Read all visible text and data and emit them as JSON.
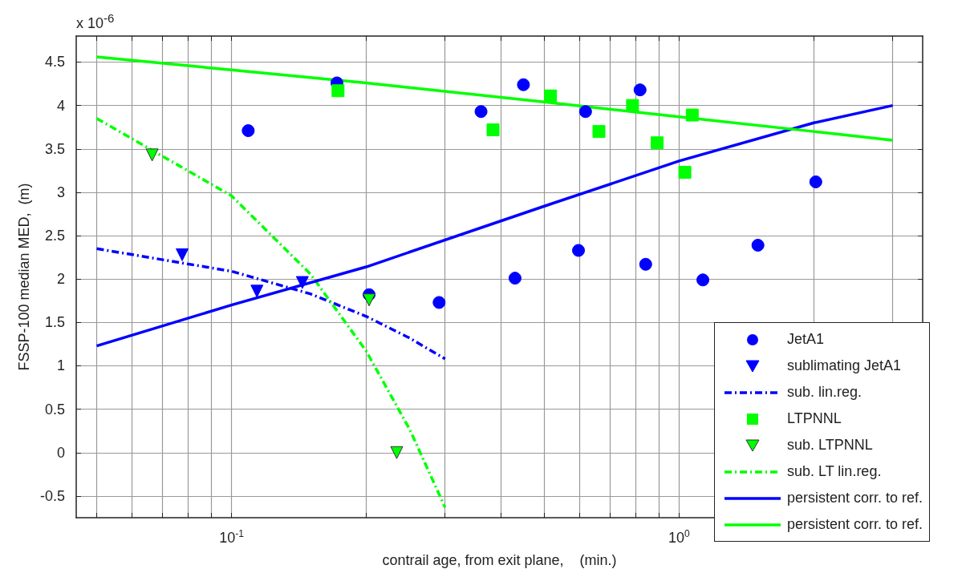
{
  "chart_data": {
    "type": "scatter",
    "xlabel": "contrail age, from exit plane,    (min.)",
    "ylabel": "FSSP-100 median MED,  (m)",
    "annotations": [
      "x 10$^{-6}$"
    ],
    "log": "x",
    "xlim": [
      0.045,
      3.5
    ],
    "xticks": [
      {
        "value": 0.05,
        "label": null
      },
      {
        "value": 0.06,
        "label": null
      },
      {
        "value": 0.07,
        "label": null
      },
      {
        "value": 0.08,
        "label": null
      },
      {
        "value": 0.09,
        "label": null
      },
      {
        "value": 0.1,
        "label": "10$^{-1}$"
      },
      {
        "value": 0.2,
        "label": null
      },
      {
        "value": 0.3,
        "label": null
      },
      {
        "value": 0.4,
        "label": null
      },
      {
        "value": 0.5,
        "label": null
      },
      {
        "value": 0.6,
        "label": null
      },
      {
        "value": 0.7,
        "label": null
      },
      {
        "value": 0.8,
        "label": null
      },
      {
        "value": 0.9,
        "label": null
      },
      {
        "value": 1,
        "label": "10$^{0}$"
      },
      {
        "value": 2,
        "label": null
      },
      {
        "value": 3,
        "label": null
      }
    ],
    "ylim": [
      -0.75,
      4.8
    ],
    "yticks": [
      -0.5,
      0,
      0.5,
      1,
      1.5,
      2,
      2.5,
      3,
      3.5,
      4,
      4.5
    ],
    "grid": true,
    "legend": "bottom right",
    "series": [
      {
        "name": "JetA1",
        "marker": "circle",
        "color": "#0000ff",
        "x": [
          0.109,
          0.172,
          0.361,
          0.449,
          0.618,
          0.818,
          0.203,
          0.291,
          0.43,
          0.596,
          0.842,
          1.13,
          1.5,
          2.02
        ],
        "values": [
          3.71,
          4.26,
          3.93,
          4.24,
          3.93,
          4.18,
          1.82,
          1.73,
          2.01,
          2.33,
          2.17,
          1.99,
          2.39,
          3.12
        ]
      },
      {
        "name": "sublimating JetA1",
        "marker": "triangle",
        "color": "#0000ff",
        "x": [
          0.0776,
          0.114,
          0.144
        ],
        "values": [
          2.28,
          1.86,
          1.96
        ]
      },
      {
        "name": "sub. lin.reg.",
        "type": "line",
        "marker": "none",
        "line_style": "dashed",
        "color": "#0000ff",
        "x": [
          0.05,
          0.1,
          0.15,
          0.2,
          0.25,
          0.3
        ],
        "values": [
          2.35,
          2.09,
          1.83,
          1.57,
          1.32,
          1.08
        ]
      },
      {
        "name": "LTPNNL",
        "marker": "square",
        "color": "#00ff00",
        "x": [
          0.173,
          0.384,
          0.516,
          0.662,
          0.787,
          0.893,
          1.07,
          1.03
        ],
        "values": [
          4.17,
          3.72,
          4.11,
          3.7,
          4.0,
          3.57,
          3.89,
          3.23
        ]
      },
      {
        "name": "sub. LTPNNL",
        "marker": "triangle",
        "color": "#00ff00",
        "x": [
          0.0665,
          0.203,
          0.234
        ],
        "values": [
          3.43,
          1.76,
          0.0
        ]
      },
      {
        "name": "sub. LT lin.reg.",
        "type": "line",
        "marker": "none",
        "line_style": "dashed",
        "color": "#00ff00",
        "x": [
          0.05,
          0.1,
          0.15,
          0.2,
          0.25,
          0.3
        ],
        "values": [
          3.85,
          2.96,
          2.06,
          1.17,
          0.27,
          -0.63
        ]
      },
      {
        "name": "persistent corr. to ref.",
        "type": "line",
        "marker": "none",
        "line_style": "solid",
        "color": "#0000ff",
        "x": [
          0.05,
          0.1,
          0.2,
          0.5,
          1,
          2,
          3
        ],
        "values": [
          1.23,
          1.7,
          2.14,
          2.84,
          3.36,
          3.8,
          4.0
        ]
      },
      {
        "name": "persistent corr. to ref.",
        "type": "line",
        "marker": "none",
        "line_style": "solid",
        "color": "#00ff00",
        "x": [
          0.05,
          0.1,
          0.2,
          0.5,
          1,
          2,
          3
        ],
        "values": [
          4.56,
          4.41,
          4.26,
          4.04,
          3.87,
          3.7,
          3.6
        ]
      }
    ]
  }
}
